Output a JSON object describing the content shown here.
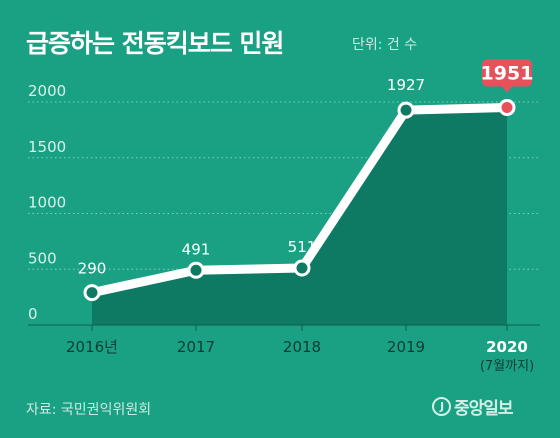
{
  "title": "급증하는 전동킥보드 민원",
  "unit_label": "단위: 건 수",
  "source": "자료: 국민권익위원회",
  "brand": {
    "mark": "J",
    "name": "중앙일보"
  },
  "colors": {
    "background": "#1aa184",
    "area": "#0f7a63",
    "line": "#ffffff",
    "highlight": "#e8505b",
    "grid": "#7fcfbc"
  },
  "chart_data": {
    "type": "area",
    "categories": [
      "2016년",
      "2017",
      "2018",
      "2019",
      "2020"
    ],
    "category_note": "(7월까지)",
    "values": [
      290,
      491,
      511,
      1927,
      1951
    ],
    "value_labels": [
      "290",
      "491",
      "511",
      "1927",
      "1951"
    ],
    "highlight_index": 4,
    "yticks": [
      "0",
      "500",
      "1000",
      "1500",
      "2000"
    ],
    "ytick_values": [
      0,
      500,
      1000,
      1500,
      2000
    ],
    "ylim": [
      0,
      2000
    ],
    "title": "급증하는 전동킥보드 민원",
    "grid": true
  }
}
